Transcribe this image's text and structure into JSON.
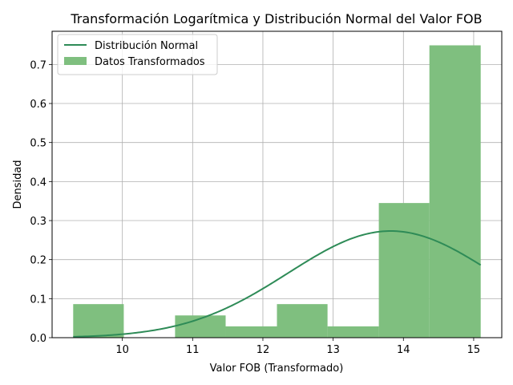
{
  "chart_data": {
    "type": "bar",
    "title": "Transformación Logarítmica y Distribución Normal del Valor FOB",
    "xlabel": "Valor FOB (Transformado)",
    "ylabel": "Densidad",
    "xlim": [
      9.0,
      15.4
    ],
    "ylim": [
      0,
      0.785
    ],
    "xticks": [
      "10",
      "11",
      "12",
      "13",
      "14",
      "15"
    ],
    "xtick_values": [
      10,
      11,
      12,
      13,
      14,
      15
    ],
    "yticks": [
      "0.0",
      "0.1",
      "0.2",
      "0.3",
      "0.4",
      "0.5",
      "0.6",
      "0.7"
    ],
    "ytick_values": [
      0,
      0.1,
      0.2,
      0.3,
      0.4,
      0.5,
      0.6,
      0.7
    ],
    "grid": true,
    "legend_position": "top-left",
    "histogram": {
      "name": "Datos Transformados",
      "color": "#7fbf7f",
      "bin_edges": [
        9.3,
        10.02,
        10.75,
        11.47,
        12.2,
        12.92,
        13.65,
        14.37,
        15.1
      ],
      "densities": [
        0.086,
        0.0,
        0.057,
        0.029,
        0.086,
        0.029,
        0.345,
        0.749
      ]
    },
    "normal_curve": {
      "name": "Distribución Normal",
      "color": "#2e8b57",
      "mean": 13.82,
      "std": 1.46,
      "x_range": [
        9.3,
        15.1
      ]
    }
  }
}
